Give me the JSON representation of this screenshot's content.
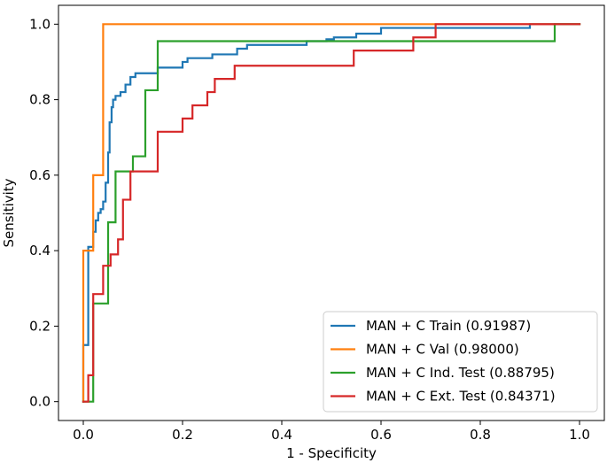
{
  "chart_data": {
    "type": "line",
    "title": "",
    "xlabel": "1 - Specificity",
    "ylabel": "Sensitivity",
    "xlim": [
      -0.05,
      1.05
    ],
    "ylim": [
      -0.05,
      1.05
    ],
    "xticks": [
      0.0,
      0.2,
      0.4,
      0.6,
      0.8,
      1.0
    ],
    "yticks": [
      0.0,
      0.2,
      0.4,
      0.6,
      0.8,
      1.0
    ],
    "xtick_labels": [
      "0.0",
      "0.2",
      "0.4",
      "0.6",
      "0.8",
      "1.0"
    ],
    "ytick_labels": [
      "0.0",
      "0.2",
      "0.4",
      "0.6",
      "0.8",
      "1.0"
    ],
    "grid": false,
    "legend_position": "lower-right",
    "series": [
      {
        "name": "MAN + C Train (0.91987)",
        "color": "#1f77b4",
        "points": [
          [
            0.0,
            0.0
          ],
          [
            0.0,
            0.15
          ],
          [
            0.01,
            0.15
          ],
          [
            0.01,
            0.41
          ],
          [
            0.02,
            0.41
          ],
          [
            0.02,
            0.45
          ],
          [
            0.025,
            0.45
          ],
          [
            0.025,
            0.48
          ],
          [
            0.03,
            0.48
          ],
          [
            0.03,
            0.5
          ],
          [
            0.035,
            0.5
          ],
          [
            0.035,
            0.51
          ],
          [
            0.04,
            0.51
          ],
          [
            0.04,
            0.53
          ],
          [
            0.045,
            0.53
          ],
          [
            0.045,
            0.58
          ],
          [
            0.05,
            0.58
          ],
          [
            0.05,
            0.66
          ],
          [
            0.053,
            0.66
          ],
          [
            0.053,
            0.74
          ],
          [
            0.057,
            0.74
          ],
          [
            0.057,
            0.78
          ],
          [
            0.06,
            0.78
          ],
          [
            0.06,
            0.8
          ],
          [
            0.065,
            0.8
          ],
          [
            0.065,
            0.81
          ],
          [
            0.075,
            0.81
          ],
          [
            0.075,
            0.82
          ],
          [
            0.085,
            0.82
          ],
          [
            0.085,
            0.84
          ],
          [
            0.095,
            0.84
          ],
          [
            0.095,
            0.86
          ],
          [
            0.105,
            0.86
          ],
          [
            0.105,
            0.87
          ],
          [
            0.15,
            0.87
          ],
          [
            0.15,
            0.885
          ],
          [
            0.2,
            0.885
          ],
          [
            0.2,
            0.9
          ],
          [
            0.21,
            0.9
          ],
          [
            0.21,
            0.91
          ],
          [
            0.26,
            0.91
          ],
          [
            0.26,
            0.92
          ],
          [
            0.31,
            0.92
          ],
          [
            0.31,
            0.935
          ],
          [
            0.33,
            0.935
          ],
          [
            0.33,
            0.945
          ],
          [
            0.45,
            0.945
          ],
          [
            0.45,
            0.955
          ],
          [
            0.49,
            0.955
          ],
          [
            0.49,
            0.96
          ],
          [
            0.505,
            0.96
          ],
          [
            0.505,
            0.965
          ],
          [
            0.55,
            0.965
          ],
          [
            0.55,
            0.975
          ],
          [
            0.6,
            0.975
          ],
          [
            0.6,
            0.99
          ],
          [
            0.9,
            0.99
          ],
          [
            0.9,
            1.0
          ],
          [
            1.0,
            1.0
          ]
        ]
      },
      {
        "name": "MAN + C Val (0.98000)",
        "color": "#ff7f0e",
        "points": [
          [
            0.0,
            0.0
          ],
          [
            0.0,
            0.4
          ],
          [
            0.02,
            0.4
          ],
          [
            0.02,
            0.6
          ],
          [
            0.04,
            0.6
          ],
          [
            0.04,
            1.0
          ],
          [
            1.0,
            1.0
          ]
        ]
      },
      {
        "name": "MAN + C Ind. Test (0.88795)",
        "color": "#2ca02c",
        "points": [
          [
            0.0,
            0.0
          ],
          [
            0.02,
            0.0
          ],
          [
            0.02,
            0.26
          ],
          [
            0.05,
            0.26
          ],
          [
            0.05,
            0.475
          ],
          [
            0.065,
            0.475
          ],
          [
            0.065,
            0.61
          ],
          [
            0.1,
            0.61
          ],
          [
            0.1,
            0.65
          ],
          [
            0.125,
            0.65
          ],
          [
            0.125,
            0.825
          ],
          [
            0.15,
            0.825
          ],
          [
            0.15,
            0.955
          ],
          [
            0.95,
            0.955
          ],
          [
            0.95,
            1.0
          ],
          [
            1.0,
            1.0
          ]
        ]
      },
      {
        "name": "MAN + C Ext. Test (0.84371)",
        "color": "#d62728",
        "points": [
          [
            0.0,
            0.0
          ],
          [
            0.01,
            0.0
          ],
          [
            0.01,
            0.07
          ],
          [
            0.02,
            0.07
          ],
          [
            0.02,
            0.285
          ],
          [
            0.04,
            0.285
          ],
          [
            0.04,
            0.36
          ],
          [
            0.055,
            0.36
          ],
          [
            0.055,
            0.39
          ],
          [
            0.07,
            0.39
          ],
          [
            0.07,
            0.43
          ],
          [
            0.08,
            0.43
          ],
          [
            0.08,
            0.535
          ],
          [
            0.095,
            0.535
          ],
          [
            0.095,
            0.61
          ],
          [
            0.15,
            0.61
          ],
          [
            0.15,
            0.715
          ],
          [
            0.2,
            0.715
          ],
          [
            0.2,
            0.75
          ],
          [
            0.22,
            0.75
          ],
          [
            0.22,
            0.785
          ],
          [
            0.25,
            0.785
          ],
          [
            0.25,
            0.82
          ],
          [
            0.265,
            0.82
          ],
          [
            0.265,
            0.855
          ],
          [
            0.305,
            0.855
          ],
          [
            0.305,
            0.89
          ],
          [
            0.545,
            0.89
          ],
          [
            0.545,
            0.93
          ],
          [
            0.665,
            0.93
          ],
          [
            0.665,
            0.965
          ],
          [
            0.71,
            0.965
          ],
          [
            0.71,
            1.0
          ],
          [
            1.0,
            1.0
          ]
        ]
      }
    ]
  }
}
